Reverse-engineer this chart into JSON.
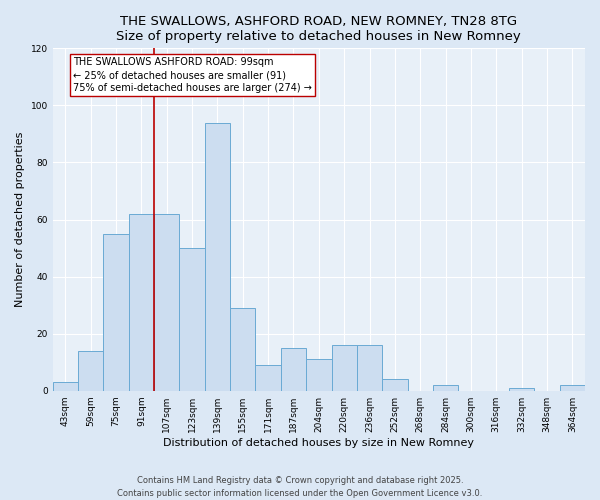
{
  "title": "THE SWALLOWS, ASHFORD ROAD, NEW ROMNEY, TN28 8TG",
  "subtitle": "Size of property relative to detached houses in New Romney",
  "xlabel": "Distribution of detached houses by size in New Romney",
  "ylabel": "Number of detached properties",
  "bin_labels": [
    "43sqm",
    "59sqm",
    "75sqm",
    "91sqm",
    "107sqm",
    "123sqm",
    "139sqm",
    "155sqm",
    "171sqm",
    "187sqm",
    "204sqm",
    "220sqm",
    "236sqm",
    "252sqm",
    "268sqm",
    "284sqm",
    "300sqm",
    "316sqm",
    "332sqm",
    "348sqm",
    "364sqm"
  ],
  "bar_values": [
    3,
    14,
    55,
    62,
    62,
    50,
    94,
    29,
    9,
    15,
    11,
    16,
    16,
    4,
    0,
    2,
    0,
    0,
    1,
    0,
    2
  ],
  "bar_color": "#ccddf0",
  "bar_edge_color": "#6aaad4",
  "ylim": [
    0,
    120
  ],
  "yticks": [
    0,
    20,
    40,
    60,
    80,
    100,
    120
  ],
  "vline_x_index": 3.5,
  "vline_color": "#bb0000",
  "annotation_line1": "THE SWALLOWS ASHFORD ROAD: 99sqm",
  "annotation_line2": "← 25% of detached houses are smaller (91)",
  "annotation_line3": "75% of semi-detached houses are larger (274) →",
  "footer1": "Contains HM Land Registry data © Crown copyright and database right 2025.",
  "footer2": "Contains public sector information licensed under the Open Government Licence v3.0.",
  "bg_color": "#dce8f5",
  "plot_bg_color": "#e8f0f8",
  "grid_color": "#ffffff",
  "title_fontsize": 9.5,
  "subtitle_fontsize": 8.5,
  "axis_label_fontsize": 8.0,
  "tick_fontsize": 6.5,
  "annotation_fontsize": 7.0,
  "footer_fontsize": 6.0
}
